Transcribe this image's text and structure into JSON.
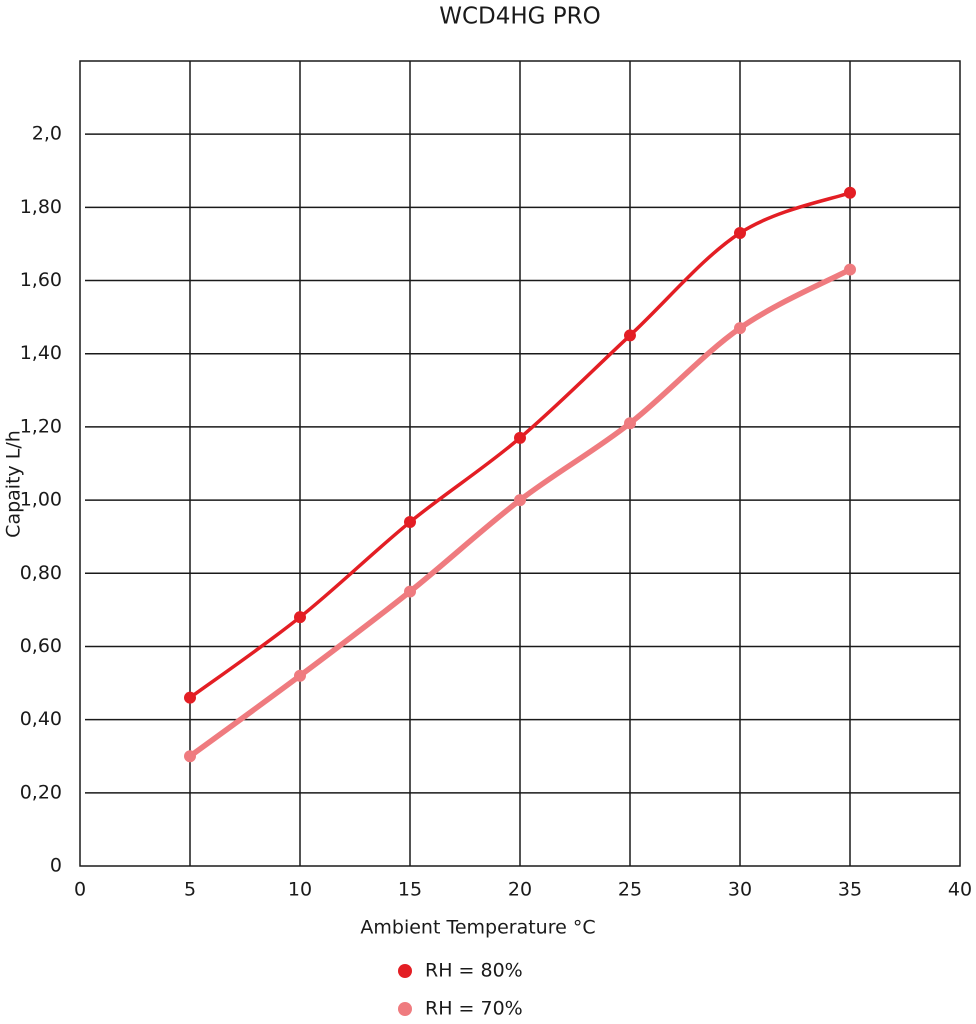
{
  "chart_data": {
    "type": "line",
    "title": "WCD4HG PRO",
    "x_label": "Ambient Temperature °C",
    "y_label": "Capaity L/h",
    "x": [
      5,
      10,
      15,
      20,
      25,
      30,
      35
    ],
    "series": [
      {
        "name": "RH = 80%",
        "color": "#e31e24",
        "values": [
          0.46,
          0.68,
          0.94,
          1.17,
          1.45,
          1.73,
          1.84
        ]
      },
      {
        "name": "RH = 70%",
        "color": "#ef7b7f",
        "values": [
          0.3,
          0.52,
          0.75,
          1.0,
          1.21,
          1.47,
          1.63
        ]
      }
    ],
    "xlim": [
      0,
      40
    ],
    "xticks": [
      0,
      5,
      10,
      15,
      20,
      25,
      30,
      35,
      40
    ],
    "ylim": [
      0,
      2.2
    ],
    "yticks": [
      0,
      {
        "value": 0.2,
        "label": "0,20"
      },
      {
        "value": 0.4,
        "label": "0,40"
      },
      {
        "value": 0.6,
        "label": "0,60"
      },
      {
        "value": 0.8,
        "label": "0,80"
      },
      {
        "value": 1.0,
        "label": "1,00"
      },
      {
        "value": 1.2,
        "label": "1,20"
      },
      {
        "value": 1.4,
        "label": "1,40"
      },
      {
        "value": 1.6,
        "label": "1,60"
      },
      {
        "value": 1.8,
        "label": "1,80"
      },
      {
        "value": 2.0,
        "label": "2,0"
      }
    ],
    "grid": true
  }
}
